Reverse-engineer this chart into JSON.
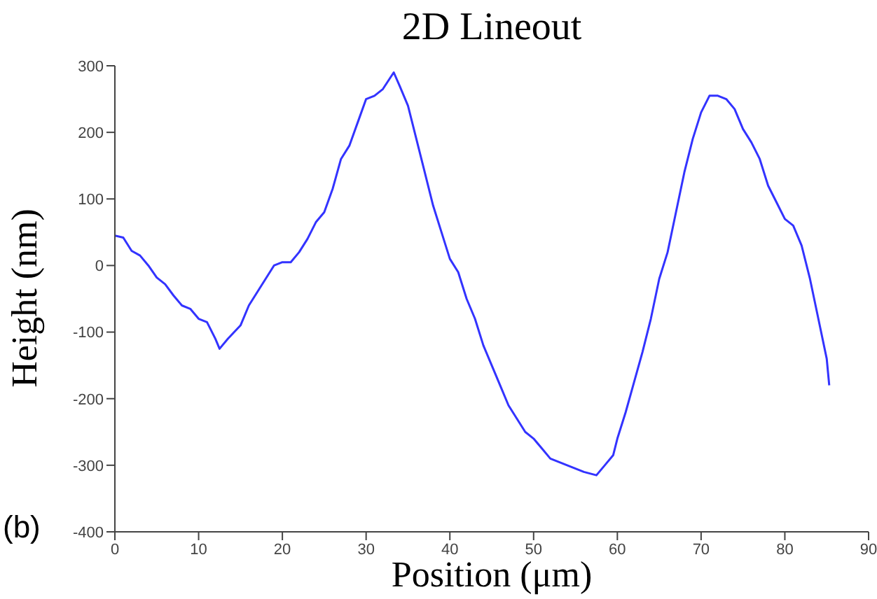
{
  "chart_data": {
    "type": "line",
    "title": "2D Lineout",
    "xlabel": "Position (μm)",
    "ylabel": "Height (nm)",
    "annotations": [
      "(b)"
    ],
    "x": [
      0,
      1,
      2,
      3,
      4,
      5,
      6,
      7,
      8,
      9,
      10,
      11,
      12,
      12.5,
      13.5,
      15,
      16,
      17,
      18,
      19,
      20,
      21,
      22,
      23,
      24,
      25,
      26,
      27,
      28,
      29,
      30,
      31,
      32,
      33.3,
      34,
      35,
      36,
      37,
      38,
      39,
      40,
      41,
      42,
      43,
      44,
      45,
      46,
      47,
      48,
      49,
      50,
      51,
      52,
      53,
      54,
      55,
      56,
      57.5,
      58.5,
      59.5,
      60,
      61,
      62,
      63,
      64,
      65,
      66,
      67,
      68,
      69,
      70,
      71,
      72,
      73,
      74,
      75,
      76,
      77,
      78,
      79,
      80,
      81,
      82,
      83,
      84,
      85,
      85.3
    ],
    "series": [
      {
        "color": "#3333ff",
        "values": [
          45,
          42,
          22,
          15,
          0,
          -18,
          -28,
          -45,
          -60,
          -65,
          -80,
          -85,
          -110,
          -125,
          -110,
          -90,
          -60,
          -40,
          -20,
          0,
          5,
          5,
          20,
          40,
          65,
          80,
          115,
          160,
          180,
          215,
          250,
          255,
          265,
          290,
          270,
          240,
          190,
          140,
          90,
          50,
          10,
          -10,
          -50,
          -80,
          -120,
          -150,
          -180,
          -210,
          -230,
          -250,
          -260,
          -275,
          -290,
          -295,
          -300,
          -305,
          -310,
          -315,
          -300,
          -285,
          -260,
          -220,
          -175,
          -130,
          -80,
          -20,
          20,
          80,
          140,
          190,
          230,
          255,
          255,
          250,
          235,
          205,
          185,
          160,
          120,
          95,
          70,
          60,
          30,
          -20,
          -80,
          -140,
          -180
        ]
      }
    ],
    "xlim": [
      0,
      90
    ],
    "xticks": [
      0,
      10,
      20,
      30,
      40,
      50,
      60,
      70,
      80,
      90
    ],
    "ylim": [
      -400,
      300
    ],
    "yticks": [
      -400,
      -300,
      -200,
      -100,
      0,
      100,
      200,
      300
    ],
    "grid": false,
    "legend": false,
    "marker": "none",
    "line_style": "solid"
  }
}
